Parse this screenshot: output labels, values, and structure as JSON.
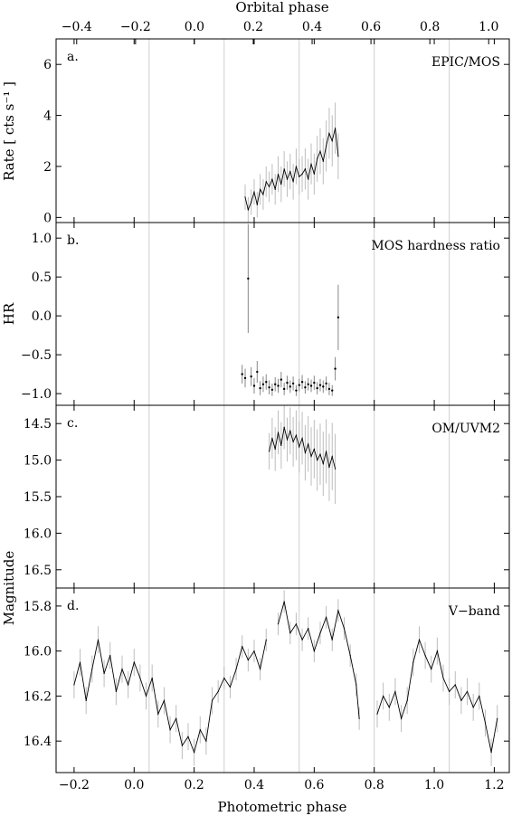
{
  "figure": {
    "top_axis_label": "Orbital phase",
    "bottom_axis_label": "Photometric phase",
    "top_ticks": [
      -0.4,
      -0.2,
      0.0,
      0.2,
      0.4,
      0.6,
      0.8,
      1.0
    ],
    "top_tick_labels": [
      "−0.4",
      "−0.2",
      "0.0",
      "0.2",
      "0.4",
      "0.6",
      "0.8",
      "1.0"
    ],
    "bottom_ticks": [
      -0.2,
      0.0,
      0.2,
      0.4,
      0.6,
      0.8,
      1.0,
      1.2
    ],
    "bottom_tick_labels": [
      "−0.2",
      "0.0",
      "0.2",
      "0.4",
      "0.6",
      "0.8",
      "1.0",
      "1.2"
    ],
    "phase_guides": [
      0.05,
      0.3,
      0.55,
      0.8,
      1.05
    ]
  },
  "chart_data": [
    {
      "type": "line",
      "panel_label": "a.",
      "panel_title": "EPIC/MOS",
      "ylabel": "Rate  [ cts s⁻¹ ]",
      "xlabel": "Photometric phase",
      "xlim": [
        -0.26,
        1.25
      ],
      "ylim": [
        -0.2,
        7.0
      ],
      "yticks": [
        0,
        2,
        4,
        6
      ],
      "ytick_labels": [
        "0",
        "2",
        "4",
        "6"
      ],
      "series": [
        {
          "x": [
            0.37,
            0.38,
            0.39,
            0.4,
            0.41,
            0.42,
            0.43,
            0.44,
            0.45,
            0.46,
            0.47,
            0.48,
            0.49,
            0.5,
            0.51,
            0.52,
            0.53,
            0.54,
            0.55,
            0.56,
            0.57,
            0.58,
            0.59,
            0.6,
            0.61,
            0.62,
            0.63,
            0.64,
            0.65,
            0.66,
            0.67,
            0.68
          ],
          "y": [
            0.8,
            0.3,
            0.6,
            1.0,
            0.5,
            1.1,
            0.9,
            1.4,
            1.2,
            1.5,
            1.1,
            1.7,
            1.3,
            1.9,
            1.5,
            1.8,
            1.4,
            2.0,
            1.6,
            1.7,
            1.9,
            1.5,
            2.1,
            1.7,
            2.3,
            2.6,
            2.2,
            2.8,
            3.3,
            3.0,
            3.5,
            2.4
          ],
          "err": [
            0.5,
            0.5,
            0.5,
            0.5,
            0.5,
            0.6,
            0.6,
            0.6,
            0.6,
            0.6,
            0.6,
            0.7,
            0.7,
            0.7,
            0.7,
            0.7,
            0.7,
            0.7,
            0.7,
            0.7,
            0.8,
            0.8,
            0.8,
            0.8,
            0.9,
            0.9,
            0.9,
            1.0,
            1.0,
            1.0,
            1.0,
            0.9
          ]
        }
      ]
    },
    {
      "type": "scatter",
      "panel_label": "b.",
      "panel_title": "MOS hardness ratio",
      "ylabel": "HR",
      "xlabel": "Photometric phase",
      "xlim": [
        -0.26,
        1.25
      ],
      "ylim": [
        -1.15,
        1.2
      ],
      "yticks": [
        -1.0,
        -0.5,
        0.0,
        0.5,
        1.0
      ],
      "ytick_labels": [
        "−1.0",
        "−0.5",
        "0.0",
        "0.5",
        "1.0"
      ],
      "series": [
        {
          "x": [
            0.36,
            0.37,
            0.38,
            0.39,
            0.4,
            0.41,
            0.42,
            0.43,
            0.44,
            0.45,
            0.46,
            0.47,
            0.48,
            0.49,
            0.5,
            0.51,
            0.52,
            0.53,
            0.54,
            0.55,
            0.56,
            0.57,
            0.58,
            0.59,
            0.6,
            0.61,
            0.62,
            0.63,
            0.64,
            0.65,
            0.66,
            0.67,
            0.68
          ],
          "y": [
            -0.75,
            -0.8,
            0.48,
            -0.78,
            -0.9,
            -0.72,
            -0.93,
            -0.88,
            -0.85,
            -0.92,
            -0.95,
            -0.88,
            -0.9,
            -0.82,
            -0.94,
            -0.86,
            -0.91,
            -0.87,
            -0.96,
            -0.89,
            -0.85,
            -0.92,
            -0.88,
            -0.9,
            -0.86,
            -0.93,
            -0.89,
            -0.91,
            -0.87,
            -0.94,
            -0.96,
            -0.68,
            -0.02
          ],
          "err": [
            0.12,
            0.12,
            0.7,
            0.12,
            0.1,
            0.14,
            0.09,
            0.1,
            0.1,
            0.09,
            0.08,
            0.09,
            0.09,
            0.1,
            0.08,
            0.09,
            0.08,
            0.09,
            0.07,
            0.08,
            0.09,
            0.08,
            0.08,
            0.08,
            0.09,
            0.08,
            0.08,
            0.08,
            0.09,
            0.08,
            0.07,
            0.15,
            0.42
          ]
        }
      ]
    },
    {
      "type": "line",
      "panel_label": "c.",
      "panel_title": "OM/UVM2",
      "ylabel": "Magnitude",
      "xlabel": "Photometric phase",
      "xlim": [
        -0.26,
        1.25
      ],
      "ylim": [
        16.75,
        14.25
      ],
      "yticks": [
        14.5,
        15.0,
        15.5,
        16.0,
        16.5
      ],
      "ytick_labels": [
        "14.5",
        "15.0",
        "15.5",
        "16.0",
        "16.5"
      ],
      "series": [
        {
          "x": [
            0.45,
            0.46,
            0.47,
            0.48,
            0.49,
            0.5,
            0.51,
            0.52,
            0.53,
            0.54,
            0.55,
            0.56,
            0.57,
            0.58,
            0.59,
            0.6,
            0.61,
            0.62,
            0.63,
            0.64,
            0.65,
            0.66,
            0.67
          ],
          "y": [
            14.88,
            14.7,
            14.85,
            14.62,
            14.8,
            14.55,
            14.72,
            14.6,
            14.75,
            14.66,
            14.82,
            14.7,
            14.9,
            14.78,
            14.95,
            14.85,
            15.0,
            14.92,
            15.05,
            14.88,
            15.1,
            14.95,
            15.12
          ],
          "err": [
            0.25,
            0.28,
            0.3,
            0.3,
            0.32,
            0.3,
            0.3,
            0.32,
            0.34,
            0.34,
            0.35,
            0.36,
            0.38,
            0.38,
            0.4,
            0.4,
            0.42,
            0.42,
            0.44,
            0.44,
            0.46,
            0.46,
            0.48
          ]
        }
      ]
    },
    {
      "type": "line",
      "panel_label": "d.",
      "panel_title": "V−band",
      "ylabel": "Magnitude",
      "xlabel": "Photometric phase",
      "xlim": [
        -0.26,
        1.25
      ],
      "ylim": [
        16.54,
        15.72
      ],
      "yticks": [
        15.8,
        16.0,
        16.2,
        16.4
      ],
      "ytick_labels": [
        "15.8",
        "16.0",
        "16.2",
        "16.4"
      ],
      "series": [
        {
          "x": [
            -0.2,
            -0.18,
            -0.16,
            -0.14,
            -0.12,
            -0.1,
            -0.08,
            -0.06,
            -0.04,
            -0.02,
            0.0,
            0.02,
            0.04,
            0.06,
            0.08,
            0.1,
            0.12,
            0.14,
            0.16,
            0.18,
            0.2,
            0.22,
            0.24,
            0.26,
            0.28,
            0.3,
            0.32,
            0.34,
            0.36,
            0.38,
            0.4,
            0.42,
            0.44
          ],
          "y": [
            16.15,
            16.05,
            16.22,
            16.08,
            15.95,
            16.1,
            16.02,
            16.18,
            16.08,
            16.15,
            16.05,
            16.12,
            16.2,
            16.12,
            16.28,
            16.22,
            16.35,
            16.3,
            16.42,
            16.38,
            16.45,
            16.35,
            16.4,
            16.22,
            16.18,
            16.12,
            16.16,
            16.08,
            15.98,
            16.04,
            16.0,
            16.08,
            15.95
          ],
          "err": [
            0.06,
            0.06,
            0.06,
            0.06,
            0.06,
            0.06,
            0.06,
            0.06,
            0.06,
            0.06,
            0.06,
            0.06,
            0.06,
            0.06,
            0.06,
            0.06,
            0.06,
            0.06,
            0.06,
            0.06,
            0.06,
            0.06,
            0.06,
            0.06,
            0.05,
            0.05,
            0.05,
            0.05,
            0.05,
            0.05,
            0.05,
            0.05,
            0.05
          ]
        },
        {
          "x": [
            0.48,
            0.5,
            0.52,
            0.54,
            0.56,
            0.58,
            0.6,
            0.62,
            0.64,
            0.66,
            0.68,
            0.7,
            0.72,
            0.74,
            0.75
          ],
          "y": [
            15.88,
            15.78,
            15.92,
            15.88,
            15.95,
            15.9,
            16.0,
            15.92,
            15.85,
            15.95,
            15.82,
            15.9,
            16.02,
            16.15,
            16.3
          ],
          "err": [
            0.05,
            0.05,
            0.05,
            0.05,
            0.05,
            0.05,
            0.05,
            0.05,
            0.05,
            0.05,
            0.05,
            0.05,
            0.05,
            0.05,
            0.05
          ]
        },
        {
          "x": [
            0.81,
            0.83,
            0.85,
            0.87,
            0.89,
            0.91,
            0.93,
            0.95,
            0.97,
            0.99,
            1.01,
            1.03,
            1.05,
            1.07,
            1.09,
            1.11,
            1.13,
            1.15,
            1.17,
            1.19,
            1.21
          ],
          "y": [
            16.28,
            16.2,
            16.25,
            16.18,
            16.3,
            16.22,
            16.05,
            15.95,
            16.02,
            16.08,
            16.0,
            16.12,
            16.18,
            16.15,
            16.22,
            16.18,
            16.25,
            16.2,
            16.32,
            16.45,
            16.3
          ],
          "err": [
            0.06,
            0.06,
            0.06,
            0.06,
            0.06,
            0.06,
            0.06,
            0.06,
            0.06,
            0.06,
            0.06,
            0.06,
            0.06,
            0.06,
            0.06,
            0.06,
            0.06,
            0.06,
            0.06,
            0.06,
            0.06
          ]
        }
      ]
    }
  ]
}
